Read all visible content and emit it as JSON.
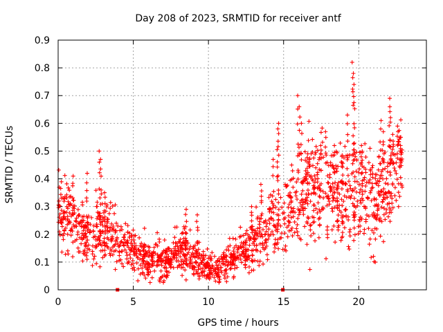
{
  "chart_data": {
    "type": "scatter",
    "title": "Day 208 of 2023, SRMTID for receiver antf",
    "xlabel": "GPS time / hours",
    "ylabel": "SRMTID / TECUs",
    "xlim": [
      0,
      24.5
    ],
    "ylim": [
      0,
      0.9
    ],
    "xticks": [
      0,
      5,
      10,
      15,
      20
    ],
    "yticks": [
      0,
      0.1,
      0.2,
      0.3,
      0.4,
      0.5,
      0.6,
      0.7,
      0.8,
      0.9
    ],
    "xtick_labels": [
      "0",
      "5",
      "10",
      "15",
      "20"
    ],
    "ytick_labels": [
      "0",
      "0.1",
      "0.2",
      "0.3",
      "0.4",
      "0.5",
      "0.6",
      "0.7",
      "0.8",
      "0.9"
    ],
    "grid": true,
    "marker": "+",
    "color": "#ff0000",
    "series": [
      {
        "name": "SRMTID",
        "trend": {
          "x": [
            0,
            0.5,
            1,
            1.5,
            2,
            2.5,
            3,
            3.5,
            4,
            4.5,
            5,
            5.5,
            6,
            6.5,
            7,
            7.5,
            8,
            8.5,
            9,
            9.5,
            10,
            10.5,
            11,
            11.5,
            12,
            12.5,
            13,
            13.5,
            14,
            14.5,
            15,
            15.5,
            16,
            16.5,
            17,
            17.5,
            18,
            18.5,
            19,
            19.5,
            20,
            20.5,
            21,
            21.5,
            22,
            22.5,
            22.9
          ],
          "y": [
            0.27,
            0.26,
            0.24,
            0.22,
            0.21,
            0.2,
            0.21,
            0.2,
            0.17,
            0.15,
            0.14,
            0.12,
            0.11,
            0.1,
            0.1,
            0.12,
            0.13,
            0.15,
            0.12,
            0.09,
            0.08,
            0.06,
            0.09,
            0.12,
            0.14,
            0.13,
            0.16,
            0.2,
            0.22,
            0.25,
            0.26,
            0.3,
            0.33,
            0.35,
            0.37,
            0.38,
            0.37,
            0.35,
            0.32,
            0.35,
            0.37,
            0.34,
            0.3,
            0.34,
            0.38,
            0.42,
            0.44
          ],
          "spread": [
            0.06,
            0.06,
            0.06,
            0.06,
            0.06,
            0.06,
            0.07,
            0.06,
            0.05,
            0.05,
            0.04,
            0.04,
            0.04,
            0.04,
            0.04,
            0.04,
            0.05,
            0.05,
            0.04,
            0.03,
            0.03,
            0.03,
            0.03,
            0.04,
            0.04,
            0.04,
            0.05,
            0.06,
            0.06,
            0.07,
            0.08,
            0.09,
            0.1,
            0.1,
            0.1,
            0.1,
            0.1,
            0.1,
            0.1,
            0.1,
            0.1,
            0.1,
            0.1,
            0.09,
            0.09,
            0.08,
            0.08
          ]
        },
        "peaks": [
          {
            "x": 1.0,
            "y": 0.41
          },
          {
            "x": 1.9,
            "y": 0.42
          },
          {
            "x": 2.75,
            "y": 0.5
          },
          {
            "x": 2.85,
            "y": 0.47
          },
          {
            "x": 3.1,
            "y": 0.35
          },
          {
            "x": 8.5,
            "y": 0.29
          },
          {
            "x": 9.25,
            "y": 0.27
          },
          {
            "x": 12.9,
            "y": 0.3
          },
          {
            "x": 13.5,
            "y": 0.38
          },
          {
            "x": 14.3,
            "y": 0.47
          },
          {
            "x": 14.65,
            "y": 0.6
          },
          {
            "x": 14.6,
            "y": 0.58
          },
          {
            "x": 15.95,
            "y": 0.7
          },
          {
            "x": 16.05,
            "y": 0.66
          },
          {
            "x": 16.2,
            "y": 0.6
          },
          {
            "x": 16.6,
            "y": 0.49
          },
          {
            "x": 17.5,
            "y": 0.52
          },
          {
            "x": 17.8,
            "y": 0.57
          },
          {
            "x": 18.4,
            "y": 0.52
          },
          {
            "x": 18.9,
            "y": 0.48
          },
          {
            "x": 19.25,
            "y": 0.63
          },
          {
            "x": 19.6,
            "y": 0.82
          },
          {
            "x": 19.65,
            "y": 0.78
          },
          {
            "x": 19.7,
            "y": 0.74
          },
          {
            "x": 20.2,
            "y": 0.52
          },
          {
            "x": 20.9,
            "y": 0.44
          },
          {
            "x": 21.45,
            "y": 0.61
          },
          {
            "x": 21.6,
            "y": 0.57
          },
          {
            "x": 22.05,
            "y": 0.69
          },
          {
            "x": 22.1,
            "y": 0.66
          },
          {
            "x": 22.3,
            "y": 0.56
          },
          {
            "x": 22.6,
            "y": 0.59
          },
          {
            "x": 22.8,
            "y": 0.52
          }
        ],
        "zero_markers": [
          {
            "x": 3.95,
            "y": 0.0
          },
          {
            "x": 14.95,
            "y": 0.0
          }
        ]
      }
    ]
  }
}
